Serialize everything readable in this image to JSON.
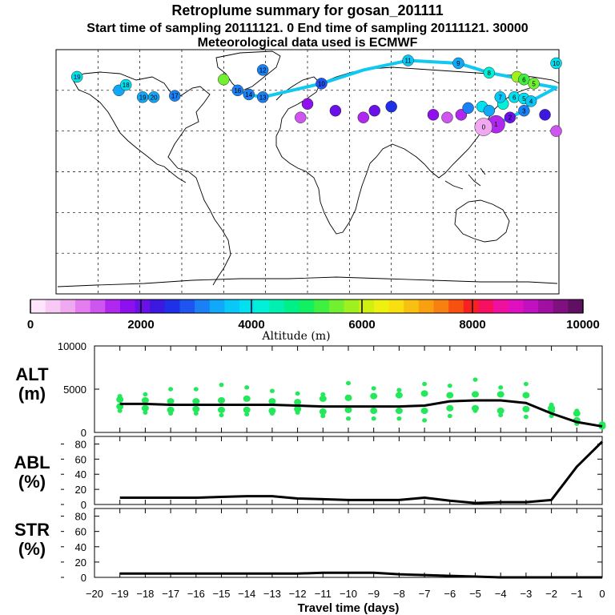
{
  "titles": {
    "main": "Retroplume summary for gosan_201111",
    "sampling": "Start time of sampling 20111121.     0     End time of sampling 20111121. 30000",
    "met": "Meteorological data used is ECMWF"
  },
  "colorbar": {
    "label": "Altitude (m)",
    "ticks": [
      "0",
      "2000",
      "4000",
      "6000",
      "8000",
      "10000"
    ],
    "range": [
      0,
      10000
    ],
    "colors": [
      "#fde6fb",
      "#f7c9f5",
      "#f0a8f0",
      "#e47ef0",
      "#cf55f0",
      "#b028f0",
      "#8e10ee",
      "#6a10e8",
      "#3c18e0",
      "#2030e8",
      "#1e55f0",
      "#1a80f5",
      "#10a8f8",
      "#08c8f8",
      "#00e0f0",
      "#00f0d8",
      "#00f0b0",
      "#00f088",
      "#10f060",
      "#40f040",
      "#70f030",
      "#a0f020",
      "#d0f010",
      "#f0f010",
      "#f8e010",
      "#f8c010",
      "#f8a010",
      "#f88010",
      "#f85010",
      "#f82020",
      "#f81060",
      "#f010a0",
      "#e010c0",
      "#c010c0",
      "#a010a0",
      "#801080",
      "#601060"
    ]
  },
  "map": {
    "points": [
      {
        "label": "19",
        "lon": -165,
        "lat": 70,
        "alt": 3800
      },
      {
        "label": "18",
        "lon": -130,
        "lat": 64,
        "alt": 3800
      },
      {
        "label": "20",
        "lon": -110,
        "lat": 55,
        "alt": 3400
      },
      {
        "label": "19",
        "lon": -118,
        "lat": 55,
        "alt": 3300
      },
      {
        "label": "17",
        "lon": -95,
        "lat": 56,
        "alt": 3200
      },
      {
        "label": "16",
        "lon": -50,
        "lat": 60,
        "alt": 3100
      },
      {
        "label": "14",
        "lon": -42,
        "lat": 57,
        "alt": 3000
      },
      {
        "label": "13",
        "lon": -32,
        "lat": 55,
        "alt": 3000
      },
      {
        "label": "12",
        "lon": -32,
        "lat": 75,
        "alt": 3200
      },
      {
        "label": "10",
        "lon": 10,
        "lat": 65,
        "alt": 2800
      },
      {
        "label": "11",
        "lon": 72,
        "lat": 82,
        "alt": 3600
      },
      {
        "label": "9",
        "lon": 108,
        "lat": 80,
        "alt": 3500
      },
      {
        "label": "8",
        "lon": 130,
        "lat": 73,
        "alt": 4200
      },
      {
        "label": "6",
        "lon": 155,
        "lat": 68,
        "alt": 5200
      },
      {
        "label": "5",
        "lon": 162,
        "lat": 65,
        "alt": 5500
      },
      {
        "label": "10",
        "lon": 178,
        "lat": 80,
        "alt": 3900
      },
      {
        "label": "7",
        "lon": 138,
        "lat": 55,
        "alt": 3700
      },
      {
        "label": "6",
        "lon": 148,
        "lat": 55,
        "alt": 3800
      },
      {
        "label": "5",
        "lon": 155,
        "lat": 54,
        "alt": 3900
      },
      {
        "label": "4",
        "lon": 160,
        "lat": 52,
        "alt": 3700
      },
      {
        "label": "3",
        "lon": 155,
        "lat": 45,
        "alt": 3000
      },
      {
        "label": "2",
        "lon": 145,
        "lat": 40,
        "alt": 2000
      },
      {
        "label": "1",
        "lon": 135,
        "lat": 35,
        "alt": 1500
      },
      {
        "label": "0",
        "lon": 126,
        "lat": 33,
        "alt": 800
      }
    ],
    "bubbles": [
      {
        "lon": 0,
        "lat": 50,
        "alt": 1800
      },
      {
        "lon": 20,
        "lat": 45,
        "alt": 2000
      },
      {
        "lon": 40,
        "lat": 40,
        "alt": 1500
      },
      {
        "lon": 60,
        "lat": 48,
        "alt": 2500
      },
      {
        "lon": 90,
        "lat": 42,
        "alt": 1700
      },
      {
        "lon": 100,
        "lat": 40,
        "alt": 1200
      },
      {
        "lon": 110,
        "lat": 42,
        "alt": 1400
      },
      {
        "lon": 115,
        "lat": 47,
        "alt": 3000
      },
      {
        "lon": 125,
        "lat": 48,
        "alt": 4000
      },
      {
        "lon": 130,
        "lat": 45,
        "alt": 3400
      },
      {
        "lon": 140,
        "lat": 50,
        "alt": 4200
      },
      {
        "lon": 170,
        "lat": 42,
        "alt": 2200
      },
      {
        "lon": 178,
        "lat": 30,
        "alt": 1300
      },
      {
        "lon": -135,
        "lat": 60,
        "alt": 3300
      },
      {
        "lon": -60,
        "lat": 68,
        "alt": 5500
      },
      {
        "lon": 150,
        "lat": 70,
        "alt": 5800
      },
      {
        "lon": -5,
        "lat": 40,
        "alt": 1200
      },
      {
        "lon": 48,
        "lat": 45,
        "alt": 1900
      }
    ]
  },
  "panels": {
    "alt": {
      "label_line1": "ALT",
      "label_line2": "(m)"
    },
    "abl": {
      "label_line1": "ABL",
      "label_line2": "(%)"
    },
    "str": {
      "label_line1": "STR",
      "label_line2": "(%)"
    }
  },
  "chart_data": [
    {
      "type": "line",
      "title": "ALT (m)",
      "ylabel": "ALT (m)",
      "ylim": [
        0,
        10000
      ],
      "yticks": [
        "0",
        "5000",
        "10000"
      ],
      "x": [
        -19,
        -18,
        -17,
        -16,
        -15,
        -14,
        -13,
        -12,
        -11,
        -10,
        -9,
        -8,
        -7,
        -6,
        -5,
        -4,
        -3,
        -2,
        -1,
        0
      ],
      "values": [
        3300,
        3300,
        3200,
        3200,
        3200,
        3200,
        3200,
        3100,
        3000,
        3000,
        3000,
        3000,
        3100,
        3600,
        3700,
        3700,
        3400,
        2200,
        1200,
        700
      ],
      "scatter_percentiles": {
        "x": [
          -19,
          -18,
          -17,
          -16,
          -15,
          -14,
          -13,
          -12,
          -11,
          -10,
          -9,
          -8,
          -7,
          -6,
          -5,
          -4,
          -3,
          -2,
          -1,
          0
        ],
        "p10": [
          2500,
          2300,
          2200,
          2200,
          2000,
          2100,
          2200,
          2300,
          1900,
          1600,
          1600,
          1600,
          1400,
          1900,
          2500,
          2000,
          1800,
          1900,
          1000,
          600
        ],
        "p25": [
          3000,
          2800,
          2600,
          2700,
          2600,
          2600,
          2500,
          2700,
          2400,
          2600,
          2500,
          2500,
          2500,
          2800,
          2800,
          2500,
          2700,
          2500,
          1400,
          700
        ],
        "p75": [
          3800,
          3700,
          3600,
          3600,
          3700,
          3900,
          3600,
          3500,
          3900,
          4000,
          4200,
          4300,
          4500,
          4300,
          4400,
          4400,
          4300,
          2800,
          2200,
          900
        ],
        "p90": [
          4200,
          4400,
          5000,
          5000,
          5500,
          5200,
          4800,
          4500,
          4400,
          5700,
          5100,
          4900,
          5600,
          5400,
          6100,
          5200,
          5600,
          3200,
          2500,
          1000
        ]
      }
    },
    {
      "type": "line",
      "title": "ABL (%)",
      "ylabel": "ABL (%)",
      "ylim": [
        0,
        90
      ],
      "yticks": [
        "0",
        "20",
        "40",
        "60",
        "80"
      ],
      "x": [
        -19,
        -18,
        -17,
        -16,
        -15,
        -14,
        -13,
        -12,
        -11,
        -10,
        -9,
        -8,
        -7,
        -6,
        -5,
        -4,
        -3,
        -2,
        -1,
        0
      ],
      "values": [
        9,
        9,
        9,
        9,
        10,
        11,
        11,
        8,
        7,
        6,
        6,
        6,
        9,
        5,
        2,
        3,
        3,
        6,
        50,
        83
      ]
    },
    {
      "type": "line",
      "title": "STR (%)",
      "ylabel": "STR (%)",
      "xlabel": "Travel time (days)",
      "ylim": [
        0,
        90
      ],
      "yticks": [
        "0",
        "20",
        "40",
        "60",
        "80"
      ],
      "xticks": [
        "-20",
        "-19",
        "-18",
        "-17",
        "-16",
        "-15",
        "-14",
        "-13",
        "-12",
        "-11",
        "-10",
        "-9",
        "-8",
        "-7",
        "-6",
        "-5",
        "-4",
        "-3",
        "-2",
        "-1",
        "0"
      ],
      "x": [
        -19,
        -18,
        -17,
        -16,
        -15,
        -14,
        -13,
        -12,
        -11,
        -10,
        -9,
        -8,
        -7,
        -6,
        -5,
        -4,
        -3,
        -2,
        -1,
        0
      ],
      "values": [
        5,
        5,
        5,
        5,
        5,
        5,
        5,
        5,
        6,
        6,
        6,
        4,
        3,
        2,
        1,
        0,
        0,
        0,
        0,
        0
      ]
    }
  ]
}
